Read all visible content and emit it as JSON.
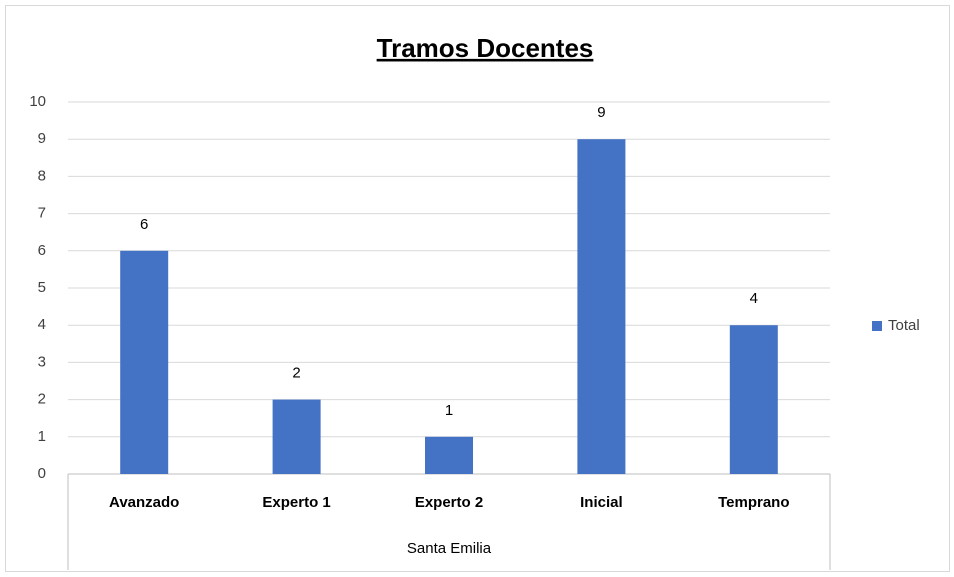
{
  "chart_data": {
    "type": "bar",
    "title": "Tramos Docentes",
    "categories": [
      "Avanzado",
      "Experto 1",
      "Experto 2",
      "Inicial",
      "Temprano"
    ],
    "group_label": "Santa Emilia",
    "series": [
      {
        "name": "Total",
        "color": "#4472c4",
        "values": [
          6,
          2,
          1,
          9,
          4
        ]
      }
    ],
    "ylim": [
      0,
      10
    ],
    "yticks": [
      0,
      1,
      2,
      3,
      4,
      5,
      6,
      7,
      8,
      9,
      10
    ],
    "grid": true,
    "legend": "right"
  }
}
